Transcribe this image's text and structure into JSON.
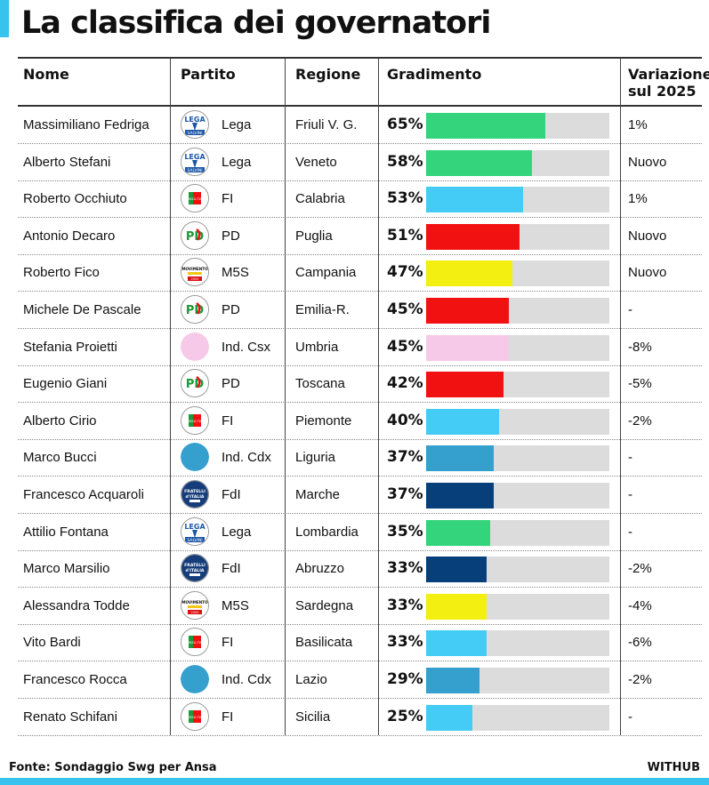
{
  "header": {
    "title": "La classifica dei governatori"
  },
  "columns": {
    "name": "Nome",
    "party": "Partito",
    "region": "Regione",
    "rating": "Gradimento",
    "change_line1": "Variazione",
    "change_line2": "sul 2025"
  },
  "footer": {
    "source": "Fonte: Sondaggio Swg per Ansa",
    "brand": "WITHUB"
  },
  "party_styles": {
    "Lega": {
      "bar": "#33d47c",
      "icon": "lega-logo-icon"
    },
    "FI": {
      "bar": "#44ccf6",
      "icon": "forza-italia-logo-icon"
    },
    "PD": {
      "bar": "#f21111",
      "icon": "pd-logo-icon"
    },
    "M5S": {
      "bar": "#f2ef11",
      "icon": "m5s-logo-icon"
    },
    "Ind. Csx": {
      "bar": "#f7c9e8",
      "icon": "pink-circle-icon",
      "dot": "#f7c9e8"
    },
    "Ind. Cdx": {
      "bar": "#359fcd",
      "icon": "blue-circle-icon",
      "dot": "#359fcd"
    },
    "FdI": {
      "bar": "#073f7a",
      "icon": "fdi-logo-icon"
    }
  },
  "logo_text": {
    "lega": "LEGA",
    "salvini": "SALVINI",
    "fi": "FORZA ITALIA",
    "pd": "PD",
    "m5s": "MOVIMENTO",
    "m5s_year": "2050",
    "fdi_1": "FRATELLI",
    "fdi_2": "d'ITALIA"
  },
  "chart_data": {
    "type": "bar",
    "title": "La classifica dei governatori",
    "xlabel": "",
    "ylabel": "Gradimento",
    "ylim": [
      0,
      100
    ],
    "rows": [
      {
        "name": "Massimiliano Fedriga",
        "party": "Lega",
        "region": "Friuli V. G.",
        "value": 65,
        "label": "65%",
        "change": "1%"
      },
      {
        "name": "Alberto Stefani",
        "party": "Lega",
        "region": "Veneto",
        "value": 58,
        "label": "58%",
        "change": "Nuovo"
      },
      {
        "name": "Roberto Occhiuto",
        "party": "FI",
        "region": "Calabria",
        "value": 53,
        "label": "53%",
        "change": "1%"
      },
      {
        "name": "Antonio Decaro",
        "party": "PD",
        "region": "Puglia",
        "value": 51,
        "label": "51%",
        "change": "Nuovo"
      },
      {
        "name": "Roberto Fico",
        "party": "M5S",
        "region": "Campania",
        "value": 47,
        "label": "47%",
        "change": "Nuovo"
      },
      {
        "name": "Michele De Pascale",
        "party": "PD",
        "region": "Emilia-R.",
        "value": 45,
        "label": "45%",
        "change": "-"
      },
      {
        "name": "Stefania Proietti",
        "party": "Ind. Csx",
        "region": "Umbria",
        "value": 45,
        "label": "45%",
        "change": "-8%"
      },
      {
        "name": "Eugenio Giani",
        "party": "PD",
        "region": "Toscana",
        "value": 42,
        "label": "42%",
        "change": "-5%"
      },
      {
        "name": "Alberto Cirio",
        "party": "FI",
        "region": "Piemonte",
        "value": 40,
        "label": "40%",
        "change": "-2%"
      },
      {
        "name": "Marco Bucci",
        "party": "Ind. Cdx",
        "region": "Liguria",
        "value": 37,
        "label": "37%",
        "change": "-"
      },
      {
        "name": "Francesco Acquaroli",
        "party": "FdI",
        "region": "Marche",
        "value": 37,
        "label": "37%",
        "change": "-"
      },
      {
        "name": "Attilio Fontana",
        "party": "Lega",
        "region": "Lombardia",
        "value": 35,
        "label": "35%",
        "change": "-"
      },
      {
        "name": "Marco Marsilio",
        "party": "FdI",
        "region": "Abruzzo",
        "value": 33,
        "label": "33%",
        "change": "-2%"
      },
      {
        "name": "Alessandra Todde",
        "party": "M5S",
        "region": "Sardegna",
        "value": 33,
        "label": "33%",
        "change": "-4%"
      },
      {
        "name": "Vito Bardi",
        "party": "FI",
        "region": "Basilicata",
        "value": 33,
        "label": "33%",
        "change": "-6%"
      },
      {
        "name": "Francesco Rocca",
        "party": "Ind. Cdx",
        "region": "Lazio",
        "value": 29,
        "label": "29%",
        "change": "-2%"
      },
      {
        "name": "Renato Schifani",
        "party": "FI",
        "region": "Sicilia",
        "value": 25,
        "label": "25%",
        "change": "-"
      }
    ]
  }
}
